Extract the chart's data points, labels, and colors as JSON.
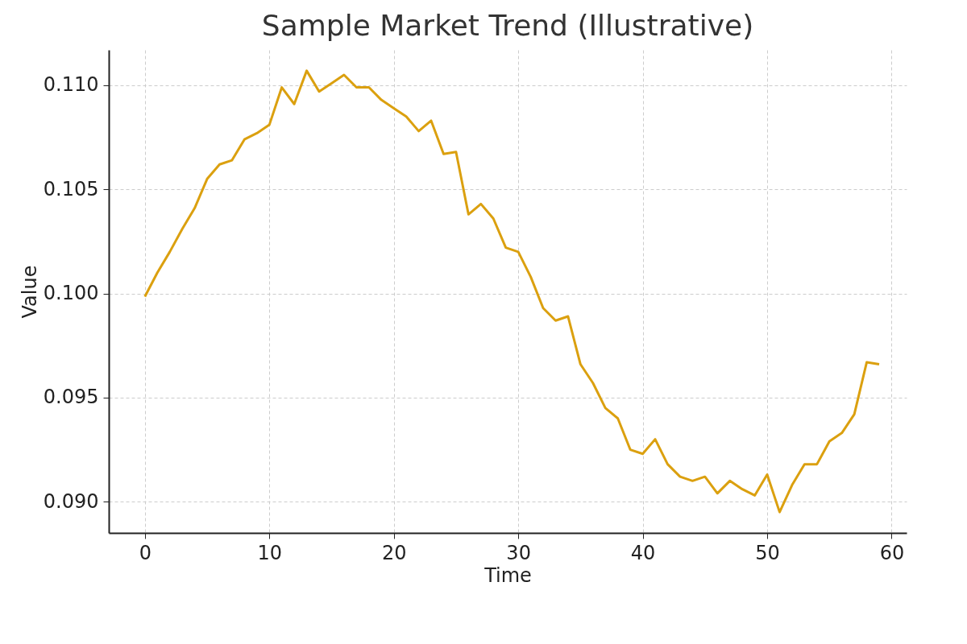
{
  "chart_data": {
    "type": "line",
    "title": "Sample Market Trend (Illustrative)",
    "xlabel": "Time",
    "ylabel": "Value",
    "x": [
      0,
      1,
      2,
      3,
      4,
      5,
      6,
      7,
      8,
      9,
      10,
      11,
      12,
      13,
      14,
      15,
      16,
      17,
      18,
      19,
      20,
      21,
      22,
      23,
      24,
      25,
      26,
      27,
      28,
      29,
      30,
      31,
      32,
      33,
      34,
      35,
      36,
      37,
      38,
      39,
      40,
      41,
      42,
      43,
      44,
      45,
      46,
      47,
      48,
      49,
      50,
      51,
      52,
      53,
      54,
      55,
      56,
      57,
      58,
      59
    ],
    "series": [
      {
        "color": "#dba00f",
        "values": [
          0.09985,
          0.101,
          0.102,
          0.1031,
          0.1041,
          0.1055,
          0.1062,
          0.1064,
          0.1074,
          0.1077,
          0.1081,
          0.1099,
          0.1091,
          0.1107,
          0.1097,
          0.1101,
          0.1105,
          0.1099,
          0.1099,
          0.1093,
          0.1089,
          0.1085,
          0.1078,
          0.1083,
          0.1067,
          0.1068,
          0.1038,
          0.1043,
          0.1036,
          0.1022,
          0.102,
          0.1008,
          0.0993,
          0.0987,
          0.0989,
          0.0966,
          0.0957,
          0.0945,
          0.094,
          0.0925,
          0.0923,
          0.093,
          0.0918,
          0.0912,
          0.091,
          0.0912,
          0.0904,
          0.091,
          0.0906,
          0.0903,
          0.0913,
          0.0895,
          0.0908,
          0.0918,
          0.0918,
          0.0929,
          0.0933,
          0.0942,
          0.0967,
          0.0966
        ]
      }
    ],
    "xlim": [
      -2.9,
      61.2
    ],
    "xticks": [
      0,
      10,
      20,
      30,
      40,
      50,
      60
    ],
    "ylim": [
      0.0885,
      0.1117
    ],
    "yticks": [
      {
        "value": 0.09,
        "label": "0.090"
      },
      {
        "value": 0.095,
        "label": "0.095"
      },
      {
        "value": 0.1,
        "label": "0.100"
      },
      {
        "value": 0.105,
        "label": "0.105"
      },
      {
        "value": 0.11,
        "label": "0.110"
      }
    ],
    "grid": true,
    "line_style": "solid",
    "marker": "none"
  }
}
